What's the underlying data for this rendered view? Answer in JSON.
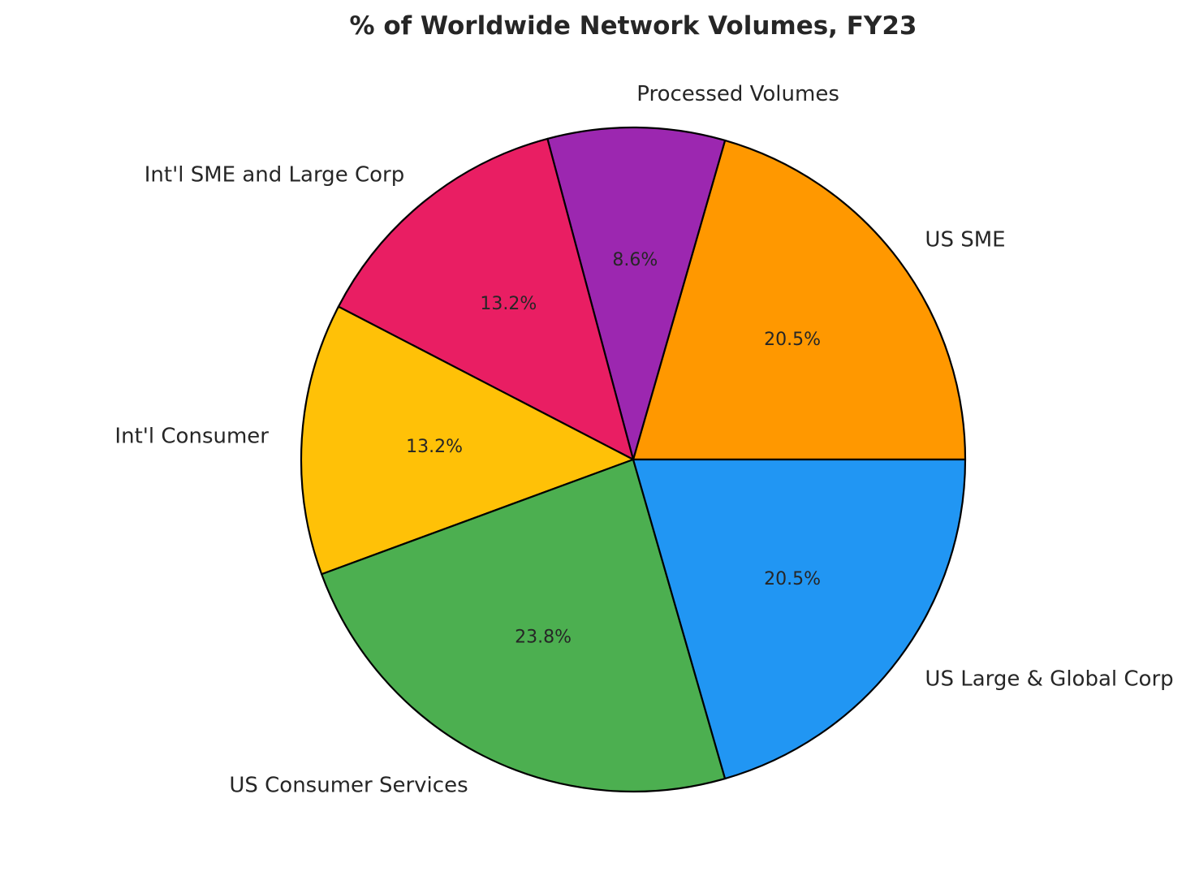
{
  "chart_data": {
    "type": "pie",
    "title": "% of Worldwide Network Volumes, FY23",
    "start_angle_deg": 0,
    "direction": "counterclockwise",
    "slices": [
      {
        "label": "US SME",
        "pct_label": "20.5%",
        "value": 20.5,
        "color": "#FF9800"
      },
      {
        "label": "Processed Volumes",
        "pct_label": "8.6%",
        "value": 8.6,
        "color": "#9C27B0"
      },
      {
        "label": "Int'l SME and Large Corp",
        "pct_label": "13.2%",
        "value": 13.2,
        "color": "#E91E63"
      },
      {
        "label": "Int'l Consumer",
        "pct_label": "13.2%",
        "value": 13.2,
        "color": "#FFC107"
      },
      {
        "label": "US Consumer Services",
        "pct_label": "23.8%",
        "value": 23.8,
        "color": "#4CAF50"
      },
      {
        "label": "US Large & Global Corp",
        "pct_label": "20.5%",
        "value": 20.5,
        "color": "#2196F3"
      }
    ]
  }
}
